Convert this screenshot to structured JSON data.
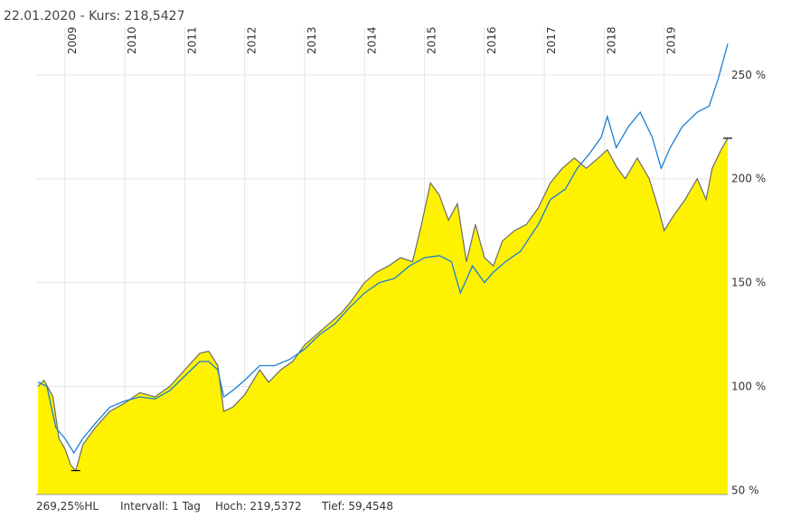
{
  "header": {
    "title": "22.01.2020  -  Kurs: 218,5427"
  },
  "footer": {
    "items": [
      "269,25%HL",
      "Intervall: 1 Tag",
      "Hoch: 219,5372",
      "Tief: 59,4548"
    ]
  },
  "chart_data": {
    "type": "area_line",
    "xlim": [
      2008.52,
      2020.06
    ],
    "xticks": [
      2009,
      2010,
      2011,
      2012,
      2013,
      2014,
      2015,
      2016,
      2017,
      2018,
      2019
    ],
    "ylim": [
      48,
      273
    ],
    "yticks": [
      {
        "value": 50,
        "label": "50 %"
      },
      {
        "value": 100,
        "label": "100 %"
      },
      {
        "value": 150,
        "label": "150 %"
      },
      {
        "value": 200,
        "label": "200 %"
      },
      {
        "value": 250,
        "label": "250 %"
      }
    ],
    "grid": true,
    "series": [
      {
        "kind": "area",
        "color": "#fff200",
        "outline": "#6b6b6b",
        "x": [
          2008.55,
          2008.65,
          2008.8,
          2008.9,
          2009.0,
          2009.1,
          2009.18,
          2009.3,
          2009.5,
          2009.75,
          2010.0,
          2010.25,
          2010.5,
          2010.75,
          2011.0,
          2011.25,
          2011.4,
          2011.55,
          2011.65,
          2011.8,
          2012.0,
          2012.25,
          2012.4,
          2012.6,
          2012.8,
          2013.0,
          2013.2,
          2013.4,
          2013.6,
          2013.75,
          2014.0,
          2014.2,
          2014.4,
          2014.6,
          2014.8,
          2014.95,
          2015.1,
          2015.25,
          2015.4,
          2015.55,
          2015.7,
          2015.85,
          2016.0,
          2016.15,
          2016.3,
          2016.5,
          2016.7,
          2016.9,
          2017.1,
          2017.3,
          2017.5,
          2017.7,
          2017.9,
          2018.05,
          2018.2,
          2018.35,
          2018.55,
          2018.75,
          2018.9,
          2019.0,
          2019.15,
          2019.35,
          2019.55,
          2019.7,
          2019.8,
          2019.95,
          2020.06
        ],
        "values": [
          100,
          103,
          95,
          75,
          70,
          62,
          59.5,
          72,
          80,
          88,
          92,
          97,
          95,
          100,
          108,
          116,
          117,
          110,
          88,
          90,
          96,
          108,
          102,
          108,
          112,
          120,
          125,
          130,
          135,
          140,
          150,
          155,
          158,
          162,
          160,
          178,
          198,
          192,
          180,
          188,
          160,
          178,
          162,
          158,
          170,
          175,
          178,
          186,
          198,
          205,
          210,
          205,
          210,
          214,
          206,
          200,
          210,
          200,
          186,
          175,
          182,
          190,
          200,
          190,
          205,
          214,
          219.5
        ]
      },
      {
        "kind": "line",
        "color": "#1a7fd4",
        "x": [
          2008.55,
          2008.7,
          2008.85,
          2009.0,
          2009.15,
          2009.3,
          2009.5,
          2009.75,
          2010.0,
          2010.25,
          2010.5,
          2010.75,
          2011.0,
          2011.25,
          2011.4,
          2011.55,
          2011.65,
          2011.8,
          2012.0,
          2012.25,
          2012.5,
          2012.75,
          2013.0,
          2013.25,
          2013.5,
          2013.75,
          2014.0,
          2014.25,
          2014.5,
          2014.75,
          2015.0,
          2015.25,
          2015.45,
          2015.6,
          2015.8,
          2016.0,
          2016.15,
          2016.35,
          2016.6,
          2016.9,
          2017.1,
          2017.35,
          2017.55,
          2017.75,
          2017.95,
          2018.05,
          2018.2,
          2018.4,
          2018.6,
          2018.8,
          2018.95,
          2019.1,
          2019.3,
          2019.55,
          2019.75,
          2019.9,
          2020.06
        ],
        "values": [
          102,
          100,
          80,
          75,
          68,
          75,
          82,
          90,
          93,
          95,
          94,
          98,
          105,
          112,
          112,
          108,
          95,
          98,
          103,
          110,
          110,
          113,
          118,
          125,
          130,
          138,
          145,
          150,
          152,
          158,
          162,
          163,
          160,
          145,
          158,
          150,
          155,
          160,
          165,
          178,
          190,
          195,
          205,
          212,
          220,
          230,
          215,
          225,
          232,
          220,
          205,
          215,
          225,
          232,
          235,
          248,
          265
        ]
      }
    ]
  }
}
